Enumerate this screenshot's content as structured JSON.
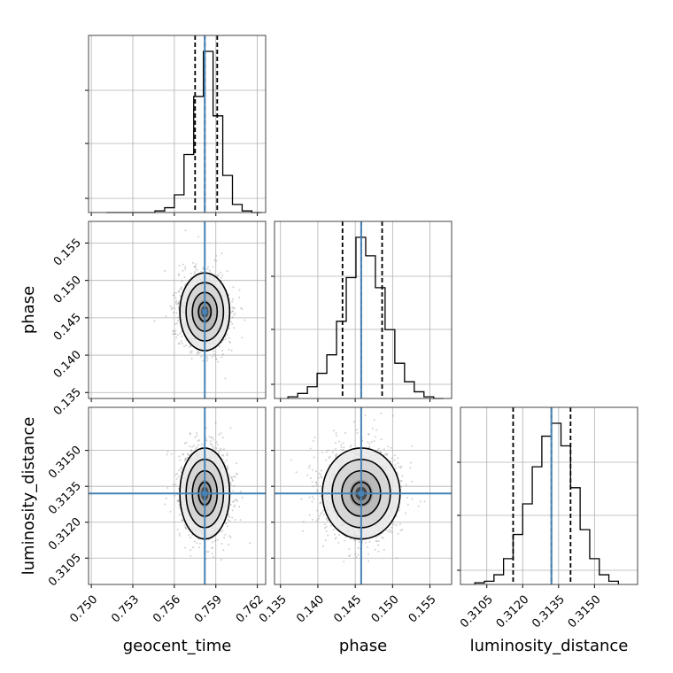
{
  "chart_data": {
    "type": "corner",
    "parameters": [
      "geocent_time",
      "phase",
      "luminosity_distance"
    ],
    "truths": {
      "geocent_time": 0.7582,
      "phase": 0.1458,
      "luminosity_distance": 0.3132
    },
    "quantiles": {
      "geocent_time": [
        0.7575,
        0.7582,
        0.7591
      ],
      "phase": [
        0.1433,
        0.1458,
        0.1486
      ],
      "luminosity_distance": [
        0.3116,
        0.3132,
        0.314
      ]
    },
    "ranges": {
      "geocent_time": [
        0.7498,
        0.7626
      ],
      "phase": [
        0.1342,
        0.1579
      ],
      "luminosity_distance": [
        0.3094,
        0.3168
      ]
    },
    "ticks": {
      "geocent_time": [
        "0.750",
        "0.753",
        "0.756",
        "0.759",
        "0.762"
      ],
      "phase": [
        "0.135",
        "0.140",
        "0.145",
        "0.150",
        "0.155"
      ],
      "luminosity_distance": [
        "0.3105",
        "0.3120",
        "0.3135",
        "0.3150"
      ]
    },
    "grid": true,
    "histograms": {
      "geocent_time": {
        "edges": [
          0.7511,
          0.7518,
          0.7525,
          0.7532,
          0.7539,
          0.7546,
          0.7553,
          0.756,
          0.7567,
          0.7574,
          0.7581,
          0.7588,
          0.7595,
          0.7602,
          0.7609,
          0.7616,
          0.7623
        ],
        "counts": [
          0,
          0,
          0,
          0,
          0,
          1,
          3,
          11,
          36,
          72,
          100,
          60,
          23,
          5,
          1,
          0
        ]
      },
      "phase": {
        "edges": [
          0.136,
          0.1373,
          0.1386,
          0.1399,
          0.1412,
          0.1425,
          0.1438,
          0.1451,
          0.1464,
          0.1477,
          0.149,
          0.1503,
          0.1516,
          0.1529,
          0.1542,
          0.1555,
          0.1568
        ],
        "counts": [
          1,
          3,
          7,
          15,
          26,
          46,
          72,
          96,
          85,
          66,
          41,
          21,
          10,
          4,
          1,
          0
        ]
      },
      "luminosity_distance": {
        "edges": [
          0.31,
          0.3104,
          0.3108,
          0.3112,
          0.3116,
          0.312,
          0.3124,
          0.3128,
          0.3132,
          0.3136,
          0.314,
          0.3144,
          0.3148,
          0.3152,
          0.3156,
          0.316
        ],
        "counts": [
          1,
          2,
          6,
          16,
          31,
          50,
          73,
          92,
          100,
          86,
          60,
          34,
          16,
          6,
          2
        ]
      }
    },
    "x_labels": [
      "geocent_time",
      "phase",
      "luminosity_distance"
    ],
    "y_labels": [
      "phase",
      "luminosity_distance"
    ]
  }
}
